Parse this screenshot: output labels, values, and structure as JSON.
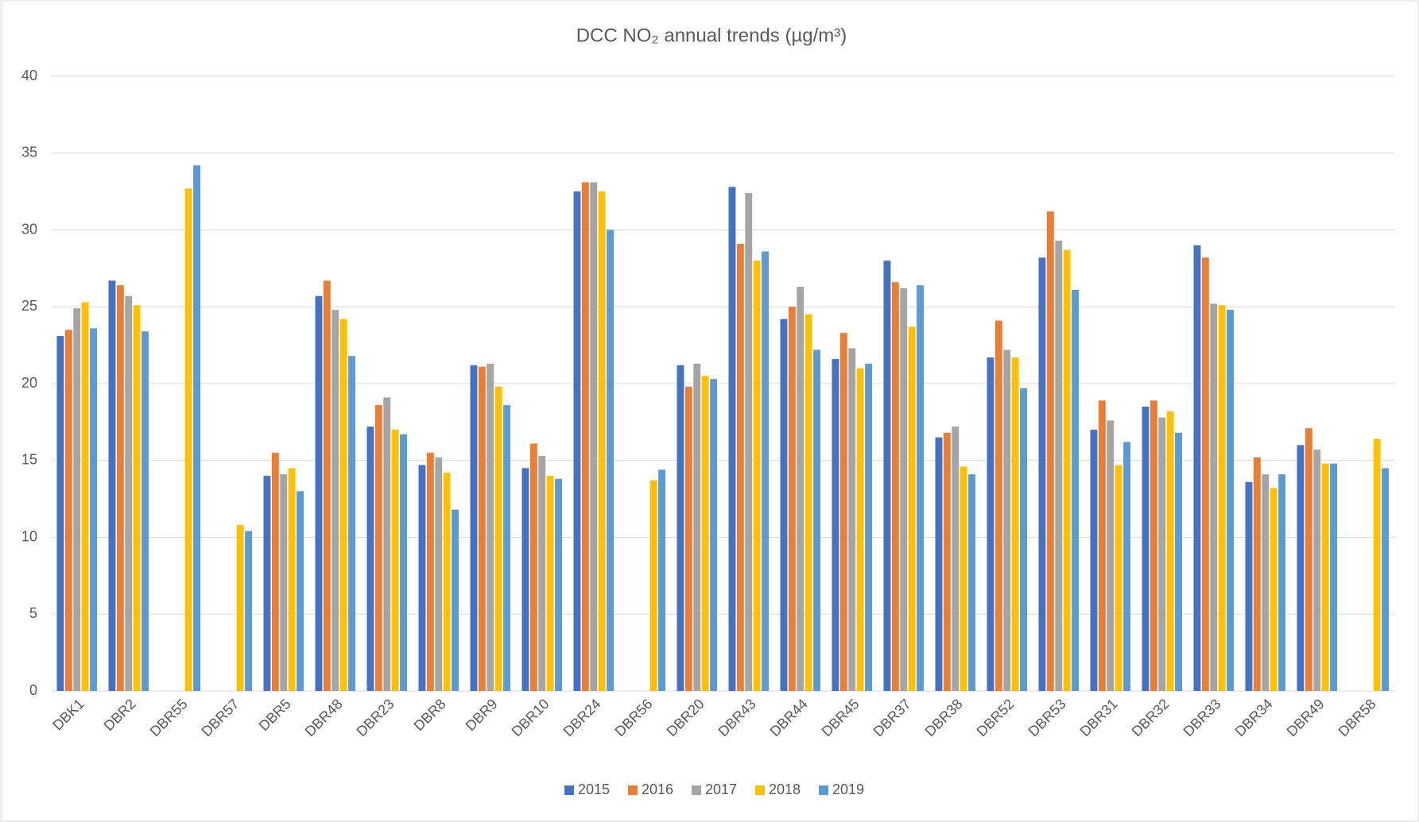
{
  "chart_data": {
    "type": "bar",
    "title": "DCC NO₂ annual trends (µg/m³)",
    "categories": [
      "DBK1",
      "DBR2",
      "DBR55",
      "DBR57",
      "DBR5",
      "DBR48",
      "DBR23",
      "DBR8",
      "DBR9",
      "DBR10",
      "DBR24",
      "DBR56",
      "DBR20",
      "DBR43",
      "DBR44",
      "DBR45",
      "DBR37",
      "DBR38",
      "DBR52",
      "DBR53",
      "DBR31",
      "DBR32",
      "DBR33",
      "DBR34",
      "DBR49",
      "DBR58"
    ],
    "series": [
      {
        "name": "2015",
        "color": "#4472c4",
        "values": [
          23.1,
          26.7,
          null,
          null,
          14.0,
          25.7,
          17.2,
          14.7,
          21.2,
          14.5,
          32.5,
          null,
          21.2,
          32.8,
          24.2,
          21.6,
          28.0,
          16.5,
          21.7,
          28.2,
          17.0,
          18.5,
          29.0,
          13.6,
          16.0,
          null
        ]
      },
      {
        "name": "2016",
        "color": "#ed7d31",
        "values": [
          23.5,
          26.4,
          null,
          null,
          15.5,
          26.7,
          18.6,
          15.5,
          21.1,
          16.1,
          33.1,
          null,
          19.8,
          29.1,
          25.0,
          23.3,
          26.6,
          16.8,
          24.1,
          31.2,
          18.9,
          18.9,
          28.2,
          15.2,
          17.1,
          null
        ]
      },
      {
        "name": "2017",
        "color": "#a5a5a5",
        "values": [
          24.9,
          25.7,
          null,
          null,
          14.1,
          24.8,
          19.1,
          15.2,
          21.3,
          15.3,
          33.1,
          null,
          21.3,
          32.4,
          26.3,
          22.3,
          26.2,
          17.2,
          22.2,
          29.3,
          17.6,
          17.8,
          25.2,
          14.1,
          15.7,
          null
        ]
      },
      {
        "name": "2018",
        "color": "#ffc000",
        "values": [
          25.3,
          25.1,
          32.7,
          10.8,
          14.5,
          24.2,
          17.0,
          14.2,
          19.8,
          14.0,
          32.5,
          13.7,
          20.5,
          28.0,
          24.5,
          21.0,
          23.7,
          14.6,
          21.7,
          28.7,
          14.7,
          18.2,
          25.1,
          13.2,
          14.8,
          16.4
        ]
      },
      {
        "name": "2019",
        "color": "#5b9bd5",
        "values": [
          23.6,
          23.4,
          34.2,
          10.4,
          13.0,
          21.8,
          16.7,
          11.8,
          18.6,
          13.8,
          30.0,
          14.4,
          20.3,
          28.6,
          22.2,
          21.3,
          26.4,
          14.1,
          19.7,
          26.1,
          16.2,
          16.8,
          24.8,
          14.1,
          14.8,
          14.5
        ]
      }
    ],
    "ylim": [
      0,
      40
    ],
    "yticks": [
      0,
      5,
      10,
      15,
      20,
      25,
      30,
      35,
      40
    ],
    "grid": true
  }
}
